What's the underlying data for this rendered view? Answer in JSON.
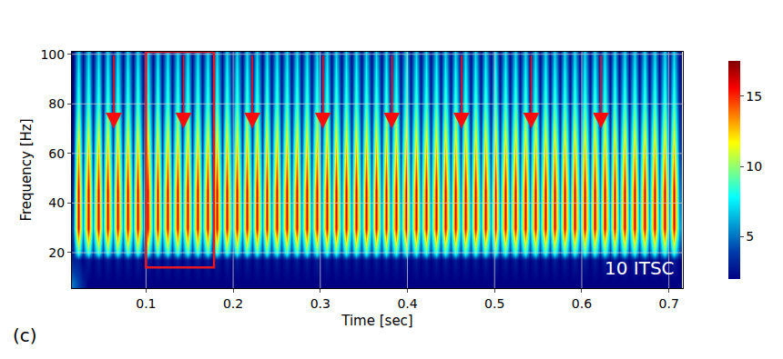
{
  "chart_data": {
    "type": "heatmap",
    "x_label": "Time [sec]",
    "y_label": "Frequency [Hz]",
    "x": [
      0.0163,
      0.022,
      0.0277,
      0.0334,
      0.0391,
      0.0448,
      0.0505,
      0.0562,
      0.0619,
      0.0676,
      0.0733,
      0.079,
      0.0847,
      0.0904,
      0.0961,
      0.1018,
      0.1075,
      0.1132,
      0.1189,
      0.1246,
      0.1303,
      0.136,
      0.1417,
      0.1474,
      0.1531,
      0.1588,
      0.1645,
      0.1702,
      0.1759,
      0.1816,
      0.1873,
      0.193,
      0.1987,
      0.2044,
      0.2101,
      0.2158,
      0.2215,
      0.2272,
      0.2329,
      0.2386,
      0.2443,
      0.25,
      0.2557,
      0.2614,
      0.2671,
      0.2728,
      0.2785,
      0.2842,
      0.2899,
      0.2956,
      0.3013,
      0.307,
      0.3127,
      0.3184,
      0.3241,
      0.3298,
      0.3355,
      0.3412,
      0.3469,
      0.3526,
      0.3583,
      0.364,
      0.3697,
      0.3754,
      0.3811,
      0.3868,
      0.3925,
      0.3982,
      0.4039,
      0.4096,
      0.4153,
      0.421,
      0.4267,
      0.4324,
      0.4381,
      0.4438,
      0.4495,
      0.4552,
      0.4609,
      0.4666,
      0.4723,
      0.478,
      0.4837,
      0.4894,
      0.4951,
      0.5008,
      0.5065,
      0.5122,
      0.5179,
      0.5236,
      0.5293,
      0.535,
      0.5407,
      0.5464,
      0.5521,
      0.5578,
      0.5635,
      0.5692,
      0.5749,
      0.5806,
      0.5863,
      0.592,
      0.5977,
      0.6034,
      0.6091,
      0.6148,
      0.6205,
      0.6262,
      0.6319,
      0.6376,
      0.6433,
      0.649,
      0.6547,
      0.6604,
      0.6661,
      0.6718,
      0.6775,
      0.6832,
      0.6889,
      0.6946,
      0.7003,
      0.706,
      0.7117
    ],
    "y": [
      8,
      17,
      20,
      30,
      45,
      60,
      80,
      100
    ],
    "cells": [
      [
        5,
        4,
        3,
        2,
        2,
        2,
        2,
        2,
        2,
        2,
        2,
        2,
        2,
        2,
        2,
        2,
        2,
        2,
        2,
        2,
        2,
        2,
        2,
        2,
        2,
        2,
        2,
        2,
        2,
        2,
        2,
        2,
        2,
        2,
        2,
        2,
        2,
        2,
        2,
        2,
        2,
        2,
        2,
        2,
        2,
        2,
        2,
        2,
        2,
        2,
        2,
        2,
        2,
        2,
        2,
        2,
        2,
        2,
        2,
        2,
        2,
        2,
        2,
        2,
        2,
        2,
        2,
        2,
        2,
        2,
        2,
        2,
        2,
        2,
        2,
        2,
        2,
        2,
        2,
        2,
        2,
        2,
        2,
        2,
        2,
        2,
        2,
        2,
        2,
        2,
        2,
        2,
        2,
        2,
        2,
        2,
        2,
        2,
        2,
        2,
        2,
        2,
        2,
        2,
        2,
        2,
        2,
        2,
        2,
        2,
        2,
        2,
        2,
        2,
        2,
        2,
        2,
        2,
        2,
        2,
        2,
        2,
        2
      ],
      [
        3,
        3,
        2,
        3,
        2,
        3,
        2,
        3,
        2,
        3,
        2,
        3,
        2,
        3,
        2,
        3,
        2,
        3,
        2,
        3,
        2,
        3,
        2,
        3,
        2,
        3,
        2,
        3,
        2,
        3,
        2,
        3,
        2,
        3,
        2,
        3,
        2,
        3,
        2,
        3,
        2,
        3,
        2,
        3,
        2,
        3,
        2,
        3,
        2,
        3,
        2,
        3,
        2,
        3,
        2,
        3,
        2,
        3,
        2,
        3,
        2,
        3,
        2,
        3,
        2,
        3,
        2,
        3,
        2,
        3,
        2,
        3,
        2,
        3,
        2,
        3,
        2,
        3,
        2,
        3,
        2,
        3,
        2,
        3,
        2,
        3,
        2,
        3,
        2,
        3,
        2,
        3,
        2,
        3,
        2,
        3,
        2,
        3,
        2,
        3,
        2,
        3,
        2,
        3,
        2,
        3,
        2,
        3,
        2,
        3,
        2,
        3,
        2,
        3,
        2,
        3,
        2,
        3,
        2,
        3,
        2,
        3,
        2
      ],
      [
        3,
        9,
        4,
        9,
        4,
        9,
        4,
        9,
        4,
        9,
        4,
        9,
        4,
        9,
        4,
        9,
        4,
        9,
        4,
        9,
        4,
        9,
        4,
        9,
        4,
        9,
        4,
        9,
        4,
        9,
        4,
        9,
        4,
        9,
        4,
        9,
        4,
        9,
        4,
        9,
        4,
        9,
        4,
        9,
        4,
        9,
        4,
        9,
        4,
        9,
        4,
        9,
        4,
        9,
        4,
        9,
        4,
        9,
        4,
        9,
        4,
        9,
        4,
        9,
        4,
        9,
        4,
        9,
        4,
        9,
        4,
        9,
        4,
        9,
        4,
        9,
        4,
        9,
        4,
        9,
        4,
        9,
        4,
        9,
        4,
        9,
        4,
        9,
        4,
        9,
        4,
        9,
        4,
        9,
        4,
        9,
        4,
        9,
        4,
        9,
        4,
        9,
        4,
        9,
        4,
        9,
        4,
        9,
        4,
        9,
        4,
        9,
        4,
        9,
        4,
        9,
        4,
        9,
        4,
        9,
        4,
        9,
        4
      ],
      [
        4,
        16,
        6,
        16,
        6,
        16,
        6,
        16,
        6,
        16,
        6,
        16,
        6,
        16,
        6,
        16,
        6,
        16,
        6,
        16,
        6,
        16,
        6,
        16,
        6,
        16,
        6,
        16,
        6,
        16,
        6,
        16,
        6,
        16,
        6,
        16,
        6,
        16,
        6,
        16,
        6,
        16,
        6,
        16,
        6,
        16,
        6,
        16,
        6,
        16,
        6,
        16,
        6,
        16,
        6,
        16,
        6,
        16,
        6,
        16,
        6,
        16,
        6,
        16,
        6,
        16,
        6,
        16,
        6,
        16,
        6,
        16,
        6,
        16,
        6,
        16,
        6,
        16,
        6,
        16,
        6,
        16,
        6,
        16,
        6,
        16,
        6,
        16,
        6,
        16,
        6,
        16,
        6,
        16,
        6,
        16,
        6,
        16,
        6,
        16,
        6,
        16,
        6,
        16,
        6,
        16,
        6,
        16,
        6,
        16,
        6,
        16,
        6,
        16,
        6,
        16,
        6,
        16,
        6,
        16,
        6,
        16,
        6
      ],
      [
        3,
        16,
        5,
        16,
        5,
        16,
        5,
        16,
        5,
        16,
        5,
        16,
        5,
        16,
        5,
        16,
        5,
        16,
        5,
        16,
        5,
        16,
        5,
        16,
        5,
        16,
        5,
        16,
        5,
        16,
        5,
        16,
        5,
        16,
        5,
        16,
        5,
        16,
        5,
        16,
        5,
        16,
        5,
        16,
        5,
        16,
        5,
        16,
        5,
        16,
        5,
        16,
        5,
        16,
        5,
        16,
        5,
        16,
        5,
        16,
        5,
        16,
        5,
        16,
        5,
        16,
        5,
        16,
        5,
        16,
        5,
        16,
        5,
        16,
        5,
        16,
        5,
        16,
        5,
        16,
        5,
        16,
        5,
        16,
        5,
        16,
        5,
        16,
        5,
        16,
        5,
        16,
        5,
        16,
        5,
        16,
        5,
        16,
        5,
        16,
        5,
        16,
        5,
        16,
        5,
        16,
        5,
        16,
        5,
        16,
        5,
        16,
        5,
        16,
        5,
        16,
        5,
        16,
        5,
        16,
        5,
        16,
        5
      ],
      [
        2.5,
        13,
        4,
        13,
        4,
        13,
        4,
        13,
        4,
        13,
        4,
        13,
        4,
        13,
        4,
        13,
        4,
        13,
        4,
        13,
        4,
        13,
        4,
        13,
        4,
        13,
        4,
        13,
        4,
        13,
        4,
        13,
        4,
        13,
        4,
        13,
        4,
        13,
        4,
        13,
        4,
        13,
        4,
        13,
        4,
        13,
        4,
        13,
        4,
        13,
        4,
        13,
        4,
        13,
        4,
        13,
        4,
        13,
        4,
        13,
        4,
        13,
        4,
        13,
        4,
        13,
        4,
        13,
        4,
        13,
        4,
        13,
        4,
        13,
        4,
        13,
        4,
        13,
        4,
        13,
        4,
        13,
        4,
        13,
        4,
        13,
        4,
        13,
        4,
        13,
        4,
        13,
        4,
        13,
        4,
        13,
        4,
        13,
        4,
        13,
        4,
        13,
        4,
        13,
        4,
        13,
        4,
        13,
        4,
        13,
        4,
        13,
        4,
        13,
        4,
        13,
        4,
        13,
        4,
        13,
        4,
        13,
        4
      ],
      [
        2,
        9,
        3,
        9,
        3,
        9,
        3,
        9,
        3,
        9,
        3,
        9,
        3,
        9,
        3,
        9,
        3,
        9,
        3,
        9,
        3,
        9,
        3,
        9,
        3,
        9,
        3,
        9,
        3,
        9,
        3,
        9,
        3,
        9,
        3,
        9,
        3,
        9,
        3,
        9,
        3,
        9,
        3,
        9,
        3,
        9,
        3,
        9,
        3,
        9,
        3,
        9,
        3,
        9,
        3,
        9,
        3,
        9,
        3,
        9,
        3,
        9,
        3,
        9,
        3,
        9,
        3,
        9,
        3,
        9,
        3,
        9,
        3,
        9,
        3,
        9,
        3,
        9,
        3,
        9,
        3,
        9,
        3,
        9,
        3,
        9,
        3,
        9,
        3,
        9,
        3,
        9,
        3,
        9,
        3,
        9,
        3,
        9,
        3,
        9,
        3,
        9,
        3,
        9,
        3,
        9,
        3,
        9,
        3,
        9,
        3,
        9,
        3,
        9,
        3,
        9,
        3,
        9,
        3,
        9,
        3,
        9,
        3
      ],
      [
        2,
        7,
        2.5,
        7,
        2.5,
        7,
        2.5,
        7,
        2.5,
        7,
        2.5,
        7,
        2.5,
        7,
        2.5,
        7,
        2.5,
        7,
        2.5,
        7,
        2.5,
        7,
        2.5,
        7,
        2.5,
        7,
        2.5,
        7,
        2.5,
        7,
        2.5,
        7,
        2.5,
        7,
        2.5,
        7,
        2.5,
        7,
        2.5,
        7,
        2.5,
        7,
        2.5,
        7,
        2.5,
        7,
        2.5,
        7,
        2.5,
        7,
        2.5,
        7,
        2.5,
        7,
        2.5,
        7,
        2.5,
        7,
        2.5,
        7,
        2.5,
        7,
        2.5,
        7,
        2.5,
        7,
        2.5,
        7,
        2.5,
        7,
        2.5,
        7,
        2.5,
        7,
        2.5,
        7,
        2.5,
        7,
        2.5,
        7,
        2.5,
        7,
        2.5,
        7,
        2.5,
        7,
        2.5,
        7,
        2.5,
        7,
        2.5,
        7,
        2.5,
        7,
        2.5,
        7,
        2.5,
        7,
        2.5,
        7,
        2.5,
        7,
        2.5,
        7,
        2.5,
        7,
        2.5,
        7,
        2.5,
        7,
        2.5,
        7,
        2.5,
        7,
        2.5,
        7,
        2.5,
        7,
        2.5,
        7,
        2.5,
        7,
        2.5
      ]
    ],
    "xlim": [
      0.015,
      0.716
    ],
    "ylim": [
      5.7,
      101
    ],
    "xticks": [
      0.1,
      0.2,
      0.3,
      0.4,
      0.5,
      0.6,
      0.7
    ],
    "yticks": [
      20,
      40,
      60,
      80,
      100
    ],
    "grid": true,
    "colorbar": {
      "range": [
        2,
        17.5
      ],
      "ticks": [
        5,
        10,
        15
      ]
    },
    "label": "10 ITSC",
    "panel": "(c)",
    "arrows": {
      "x": [
        0.063,
        0.143,
        0.222,
        0.303,
        0.382,
        0.462,
        0.542,
        0.622
      ],
      "from": 100,
      "to": 70,
      "color": "#ff0a0a"
    },
    "box": {
      "x": [
        0.1,
        0.178
      ],
      "y": [
        14,
        101
      ],
      "color": "#e8191e"
    }
  }
}
